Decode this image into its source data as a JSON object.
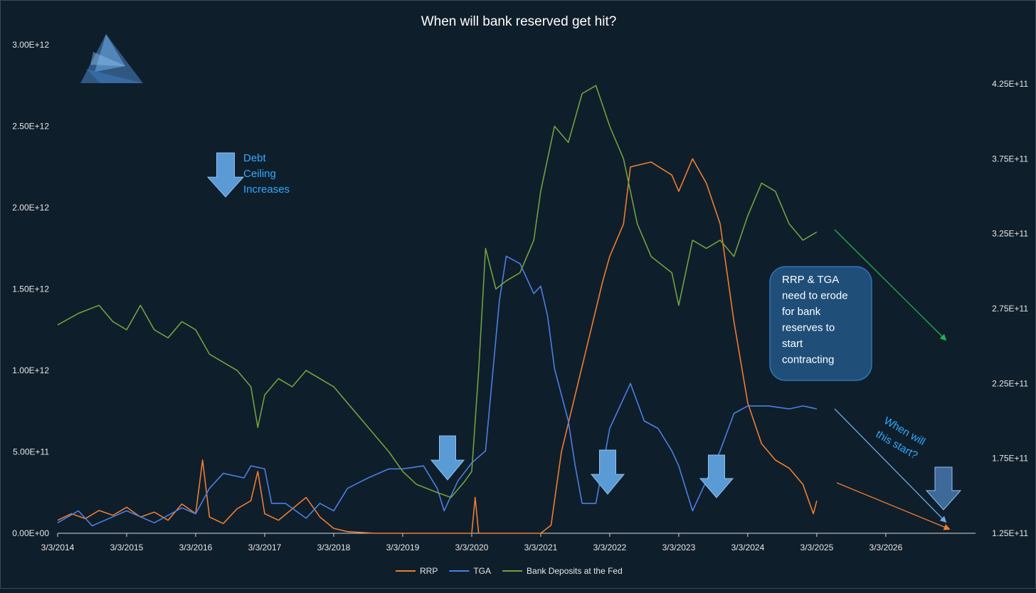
{
  "chart_data": {
    "type": "line",
    "title": "When will bank reserved get hit?",
    "x_ticks": [
      "3/3/2014",
      "3/3/2015",
      "3/3/2016",
      "3/3/2017",
      "3/3/2018",
      "3/3/2019",
      "3/3/2020",
      "3/3/2021",
      "3/3/2022",
      "3/3/2023",
      "3/3/2024",
      "3/3/2025",
      "3/3/2026"
    ],
    "x_range": [
      2014.0,
      2027.3
    ],
    "y_left_ticks": [
      "0.00E+00",
      "5.00E+11",
      "1.00E+12",
      "1.50E+12",
      "2.00E+12",
      "2.50E+12",
      "3.00E+12"
    ],
    "y_left_range": [
      0,
      3000000000000.0
    ],
    "y_right_ticks": [
      "1.25E+11",
      "1.75E+11",
      "2.25E+11",
      "2.75E+11",
      "3.25E+11",
      "3.75E+11",
      "4.25E+11"
    ],
    "y_right_range": [
      125000000000.0,
      425000000000.0
    ],
    "colors": {
      "RRP": "#ed7d31",
      "TGA": "#4a80e0",
      "Bank Deposits at the Fed": "#6ea23f",
      "projection_green": "#22b14c",
      "projection_blue": "#6fa8e8",
      "arrow_fill": "#5b9bd5"
    },
    "series": [
      {
        "name": "RRP",
        "axis": "left",
        "points": [
          [
            2014.0,
            80000000000.0
          ],
          [
            2014.2,
            120000000000.0
          ],
          [
            2014.4,
            90000000000.0
          ],
          [
            2014.6,
            140000000000.0
          ],
          [
            2014.8,
            110000000000.0
          ],
          [
            2015.0,
            160000000000.0
          ],
          [
            2015.2,
            100000000000.0
          ],
          [
            2015.4,
            130000000000.0
          ],
          [
            2015.6,
            80000000000.0
          ],
          [
            2015.8,
            180000000000.0
          ],
          [
            2016.0,
            120000000000.0
          ],
          [
            2016.1,
            450000000000.0
          ],
          [
            2016.2,
            100000000000.0
          ],
          [
            2016.4,
            60000000000.0
          ],
          [
            2016.6,
            150000000000.0
          ],
          [
            2016.8,
            200000000000.0
          ],
          [
            2016.9,
            380000000000.0
          ],
          [
            2017.0,
            120000000000.0
          ],
          [
            2017.2,
            80000000000.0
          ],
          [
            2017.4,
            150000000000.0
          ],
          [
            2017.6,
            220000000000.0
          ],
          [
            2017.8,
            100000000000.0
          ],
          [
            2018.0,
            30000000000.0
          ],
          [
            2018.2,
            10000000000.0
          ],
          [
            2018.6,
            0.0
          ],
          [
            2019.0,
            0.0
          ],
          [
            2019.5,
            0.0
          ],
          [
            2020.0,
            0.0
          ],
          [
            2020.05,
            220000000000.0
          ],
          [
            2020.1,
            0.0
          ],
          [
            2021.0,
            0.0
          ],
          [
            2021.15,
            50000000000.0
          ],
          [
            2021.3,
            500000000000.0
          ],
          [
            2021.5,
            850000000000.0
          ],
          [
            2021.7,
            1200000000000.0
          ],
          [
            2021.9,
            1550000000000.0
          ],
          [
            2022.0,
            1700000000000.0
          ],
          [
            2022.2,
            1900000000000.0
          ],
          [
            2022.3,
            2250000000000.0
          ],
          [
            2022.6,
            2280000000000.0
          ],
          [
            2022.9,
            2200000000000.0
          ],
          [
            2023.0,
            2100000000000.0
          ],
          [
            2023.2,
            2300000000000.0
          ],
          [
            2023.4,
            2150000000000.0
          ],
          [
            2023.6,
            1900000000000.0
          ],
          [
            2023.8,
            1300000000000.0
          ],
          [
            2024.0,
            800000000000.0
          ],
          [
            2024.2,
            550000000000.0
          ],
          [
            2024.4,
            450000000000.0
          ],
          [
            2024.6,
            400000000000.0
          ],
          [
            2024.8,
            300000000000.0
          ],
          [
            2024.9,
            180000000000.0
          ],
          [
            2024.95,
            120000000000.0
          ],
          [
            2025.0,
            200000000000.0
          ]
        ]
      },
      {
        "name": "TGA",
        "axis": "right",
        "points": [
          [
            2014.0,
            132000000000.0
          ],
          [
            2014.3,
            140000000000.0
          ],
          [
            2014.5,
            130000000000.0
          ],
          [
            2014.8,
            136000000000.0
          ],
          [
            2015.0,
            140000000000.0
          ],
          [
            2015.4,
            132000000000.0
          ],
          [
            2015.8,
            142000000000.0
          ],
          [
            2016.0,
            138000000000.0
          ],
          [
            2016.2,
            155000000000.0
          ],
          [
            2016.4,
            165000000000.0
          ],
          [
            2016.7,
            162000000000.0
          ],
          [
            2016.8,
            170000000000.0
          ],
          [
            2017.0,
            168000000000.0
          ],
          [
            2017.1,
            145000000000.0
          ],
          [
            2017.3,
            145000000000.0
          ],
          [
            2017.6,
            135000000000.0
          ],
          [
            2017.8,
            145000000000.0
          ],
          [
            2018.0,
            140000000000.0
          ],
          [
            2018.2,
            155000000000.0
          ],
          [
            2018.5,
            162000000000.0
          ],
          [
            2018.8,
            168000000000.0
          ],
          [
            2019.0,
            168000000000.0
          ],
          [
            2019.3,
            170000000000.0
          ],
          [
            2019.5,
            155000000000.0
          ],
          [
            2019.6,
            140000000000.0
          ],
          [
            2019.8,
            160000000000.0
          ],
          [
            2020.0,
            172000000000.0
          ],
          [
            2020.2,
            180000000000.0
          ],
          [
            2020.4,
            280000000000.0
          ],
          [
            2020.5,
            310000000000.0
          ],
          [
            2020.7,
            305000000000.0
          ],
          [
            2020.9,
            285000000000.0
          ],
          [
            2021.0,
            290000000000.0
          ],
          [
            2021.1,
            270000000000.0
          ],
          [
            2021.2,
            235000000000.0
          ],
          [
            2021.4,
            200000000000.0
          ],
          [
            2021.5,
            170000000000.0
          ],
          [
            2021.6,
            145000000000.0
          ],
          [
            2021.8,
            145000000000.0
          ],
          [
            2021.9,
            170000000000.0
          ],
          [
            2022.0,
            195000000000.0
          ],
          [
            2022.3,
            225000000000.0
          ],
          [
            2022.5,
            200000000000.0
          ],
          [
            2022.7,
            195000000000.0
          ],
          [
            2022.9,
            180000000000.0
          ],
          [
            2023.0,
            170000000000.0
          ],
          [
            2023.2,
            140000000000.0
          ],
          [
            2023.4,
            160000000000.0
          ],
          [
            2023.6,
            180000000000.0
          ],
          [
            2023.8,
            205000000000.0
          ],
          [
            2024.0,
            210000000000.0
          ],
          [
            2024.3,
            210000000000.0
          ],
          [
            2024.6,
            208000000000.0
          ],
          [
            2024.8,
            210000000000.0
          ],
          [
            2025.0,
            208000000000.0
          ]
        ]
      },
      {
        "name": "Bank Deposits at the Fed",
        "axis": "left",
        "points": [
          [
            2014.0,
            1280000000000.0
          ],
          [
            2014.3,
            1350000000000.0
          ],
          [
            2014.6,
            1400000000000.0
          ],
          [
            2014.8,
            1300000000000.0
          ],
          [
            2015.0,
            1250000000000.0
          ],
          [
            2015.2,
            1400000000000.0
          ],
          [
            2015.4,
            1250000000000.0
          ],
          [
            2015.6,
            1200000000000.0
          ],
          [
            2015.8,
            1300000000000.0
          ],
          [
            2016.0,
            1250000000000.0
          ],
          [
            2016.2,
            1100000000000.0
          ],
          [
            2016.4,
            1050000000000.0
          ],
          [
            2016.6,
            1000000000000.0
          ],
          [
            2016.8,
            900000000000.0
          ],
          [
            2016.9,
            650000000000.0
          ],
          [
            2017.0,
            850000000000.0
          ],
          [
            2017.2,
            950000000000.0
          ],
          [
            2017.4,
            900000000000.0
          ],
          [
            2017.6,
            1000000000000.0
          ],
          [
            2017.8,
            950000000000.0
          ],
          [
            2018.0,
            900000000000.0
          ],
          [
            2018.2,
            800000000000.0
          ],
          [
            2018.4,
            700000000000.0
          ],
          [
            2018.6,
            600000000000.0
          ],
          [
            2018.8,
            500000000000.0
          ],
          [
            2019.0,
            380000000000.0
          ],
          [
            2019.2,
            300000000000.0
          ],
          [
            2019.5,
            250000000000.0
          ],
          [
            2019.7,
            220000000000.0
          ],
          [
            2019.9,
            320000000000.0
          ],
          [
            2020.0,
            380000000000.0
          ],
          [
            2020.1,
            1000000000000.0
          ],
          [
            2020.2,
            1750000000000.0
          ],
          [
            2020.35,
            1500000000000.0
          ],
          [
            2020.5,
            1550000000000.0
          ],
          [
            2020.7,
            1600000000000.0
          ],
          [
            2020.9,
            1800000000000.0
          ],
          [
            2021.0,
            2100000000000.0
          ],
          [
            2021.2,
            2500000000000.0
          ],
          [
            2021.4,
            2400000000000.0
          ],
          [
            2021.6,
            2700000000000.0
          ],
          [
            2021.8,
            2750000000000.0
          ],
          [
            2022.0,
            2500000000000.0
          ],
          [
            2022.2,
            2300000000000.0
          ],
          [
            2022.4,
            1900000000000.0
          ],
          [
            2022.6,
            1700000000000.0
          ],
          [
            2022.9,
            1600000000000.0
          ],
          [
            2023.0,
            1400000000000.0
          ],
          [
            2023.2,
            1800000000000.0
          ],
          [
            2023.4,
            1750000000000.0
          ],
          [
            2023.6,
            1800000000000.0
          ],
          [
            2023.8,
            1700000000000.0
          ],
          [
            2024.0,
            1950000000000.0
          ],
          [
            2024.2,
            2150000000000.0
          ],
          [
            2024.4,
            2100000000000.0
          ],
          [
            2024.6,
            1900000000000.0
          ],
          [
            2024.8,
            1800000000000.0
          ],
          [
            2025.0,
            1850000000000.0
          ]
        ]
      }
    ],
    "legend": {
      "position": "bottom",
      "entries": [
        "RRP",
        "TGA",
        "Bank Deposits at the Fed"
      ]
    },
    "annotations": {
      "debt_ceiling_label": [
        "Debt",
        "Ceiling",
        "Increases"
      ],
      "box_lines": [
        "RRP & TGA",
        "need to erode",
        "for bank",
        "reserves to",
        "start",
        "contracting"
      ],
      "question_lines": [
        "When will",
        "this start?"
      ],
      "debt_ceiling_arrows": [
        [
          2016.0,
          "left",
          2250000000000.0
        ],
        [
          2019.45,
          "left",
          600000000000.0
        ],
        [
          2021.7,
          "left",
          500000000000.0
        ],
        [
          2023.2,
          "left",
          450000000000.0
        ],
        [
          2026.6,
          "left",
          400000000000.0
        ]
      ]
    },
    "grid": false
  }
}
